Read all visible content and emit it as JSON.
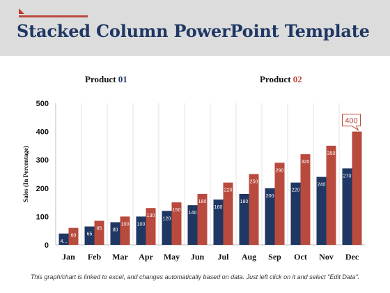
{
  "slide": {
    "title": "Stacked Column PowerPoint Template",
    "footnote": "This graph/chart is linked to excel, and changes automatically based on data. Just left click on it and select \"Edit Data\"."
  },
  "legend": {
    "product1_word": "Product",
    "product1_num": "01",
    "product2_word": "Product",
    "product2_num": "02"
  },
  "colors": {
    "product1": "#1f3763",
    "product2": "#b94a3e",
    "title": "#1f3763",
    "header_bg": "#dcdcdc"
  },
  "chart_data": {
    "type": "bar",
    "categories": [
      "Jan",
      "Feb",
      "Mar",
      "Apr",
      "May",
      "Jun",
      "Jul",
      "Aug",
      "Sep",
      "Oct",
      "Nov",
      "Dec"
    ],
    "series": [
      {
        "name": "Product 01",
        "values": [
          40,
          65,
          80,
          100,
          120,
          140,
          160,
          180,
          200,
          220,
          240,
          270
        ],
        "labels": [
          "4...",
          "65",
          "80",
          "100",
          "120",
          "140",
          "160",
          "180",
          "200",
          "220",
          "240",
          "270"
        ]
      },
      {
        "name": "Product 02",
        "values": [
          60,
          85,
          100,
          130,
          150,
          180,
          220,
          250,
          290,
          320,
          350,
          400
        ],
        "labels": [
          "60",
          "85",
          "100",
          "130",
          "150",
          "180",
          "220",
          "250",
          "290",
          "320",
          "350",
          "400"
        ]
      }
    ],
    "ylabel": "Sales  (In Percentage)",
    "ylim": [
      0,
      500
    ],
    "yticks": [
      0,
      100,
      200,
      300,
      400,
      500
    ],
    "grid": "vertical",
    "callout": {
      "series": "Product 02",
      "category": "Dec",
      "text": "400"
    }
  }
}
